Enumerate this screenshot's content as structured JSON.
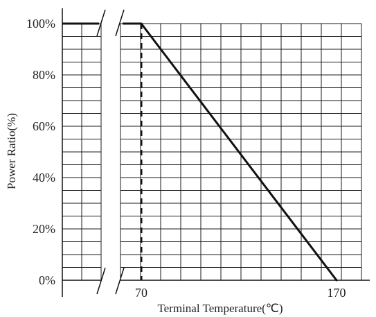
{
  "chart_data": {
    "type": "line",
    "title": "",
    "xlabel": "Terminal Temperature(℃)",
    "ylabel": "Power Ratio(%)",
    "x_ticks": [
      {
        "value": 70,
        "label": "70"
      },
      {
        "value": 170,
        "label": "170"
      }
    ],
    "y_ticks": [
      {
        "value": 0,
        "label": "0%"
      },
      {
        "value": 20,
        "label": "20%"
      },
      {
        "value": 40,
        "label": "40%"
      },
      {
        "value": 60,
        "label": "60%"
      },
      {
        "value": 80,
        "label": "80%"
      },
      {
        "value": 100,
        "label": "100%"
      }
    ],
    "xlim": [
      70,
      170
    ],
    "ylim": [
      0,
      100
    ],
    "x_axis_break": true,
    "grid": true,
    "series": [
      {
        "x": [
          70,
          170
        ],
        "y": [
          100,
          0
        ]
      }
    ],
    "reference_line": {
      "x": 70,
      "y_from": 0,
      "y_to": 100,
      "style": "dashed"
    },
    "colors": {
      "grid": "#1a1a1a",
      "line": "#111111",
      "text": "#222222"
    }
  }
}
